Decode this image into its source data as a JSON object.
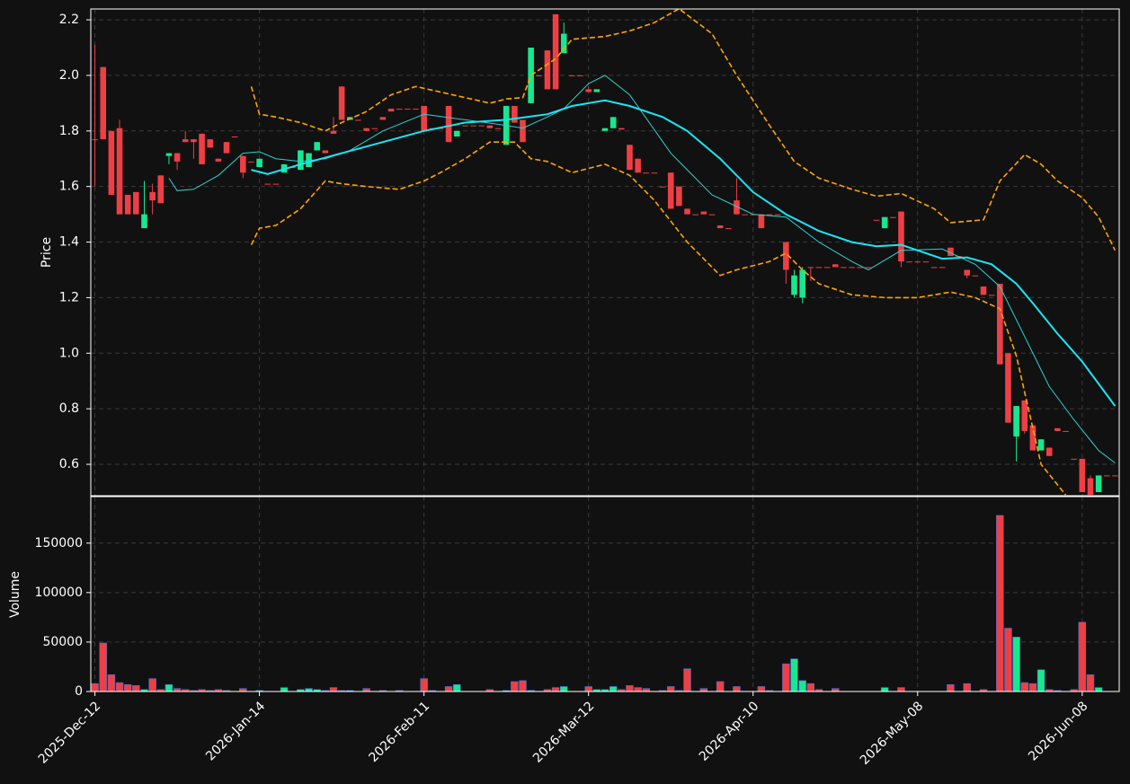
{
  "chart_data": [
    {
      "type": "candlestick",
      "ylabel": "Price",
      "xlim": [
        -0.5,
        124.5
      ],
      "xticks": [
        0,
        20,
        40,
        60,
        80,
        100,
        120
      ],
      "ylim": [
        0.487,
        2.239
      ],
      "yticks": [
        0.6,
        0.8,
        {
          "value": 1,
          "label": "1.0"
        },
        1.2,
        1.4,
        1.6,
        1.8,
        {
          "value": 2,
          "label": "2.0"
        },
        2.2
      ],
      "grid": true,
      "up_color": "#17e88f",
      "down_color": "#ee3f45",
      "open": [
        1.77,
        2.03,
        1.8,
        1.81,
        1.57,
        1.58,
        1.45,
        1.58,
        1.64,
        1.71,
        1.72,
        1.77,
        1.77,
        1.79,
        1.77,
        1.7,
        1.76,
        1.78,
        1.71,
        1.69,
        1.67,
        1.61,
        1.61,
        1.65,
        1.67,
        1.66,
        1.67,
        1.73,
        1.73,
        1.8,
        1.96,
        1.84,
        1.84,
        1.81,
        1.81,
        1.85,
        1.88,
        1.88,
        1.88,
        1.88,
        1.89,
        1.81,
        1.81,
        1.89,
        1.78,
        1.82,
        1.82,
        1.82,
        1.82,
        1.81,
        1.75,
        1.89,
        1.84,
        1.9,
        2.0,
        2.09,
        2.22,
        2.08,
        2.0,
        2.0,
        1.95,
        1.94,
        1.8,
        1.81,
        1.81,
        1.75,
        1.7,
        1.65,
        1.65,
        1.6,
        1.65,
        1.6,
        1.52,
        1.5,
        1.51,
        1.5,
        1.46,
        1.45,
        1.55,
        1.5,
        1.5,
        1.5,
        1.5,
        1.5,
        1.4,
        1.21,
        1.2,
        1.31,
        1.31,
        1.31,
        1.32,
        1.31,
        1.31,
        1.31,
        1.31,
        1.48,
        1.45,
        1.49,
        1.51,
        1.33,
        1.33,
        1.33,
        1.31,
        1.31,
        1.38,
        1.35,
        1.3,
        1.28,
        1.24,
        1.21,
        1.25,
        1.0,
        0.7,
        0.83,
        0.74,
        0.65,
        0.66,
        0.73,
        0.72,
        0.62,
        0.62,
        0.55,
        0.5,
        0.56,
        0.56
      ],
      "high": [
        2.11,
        2.03,
        1.8,
        1.84,
        1.57,
        1.58,
        1.62,
        1.61,
        1.64,
        1.72,
        1.72,
        1.8,
        1.77,
        1.79,
        1.77,
        1.7,
        1.76,
        1.78,
        1.71,
        1.69,
        1.7,
        1.61,
        1.61,
        1.68,
        1.67,
        1.73,
        1.72,
        1.76,
        1.73,
        1.85,
        1.96,
        1.85,
        1.84,
        1.81,
        1.81,
        1.85,
        1.88,
        1.88,
        1.88,
        1.88,
        1.89,
        1.81,
        1.81,
        1.89,
        1.8,
        1.82,
        1.82,
        1.82,
        1.82,
        1.81,
        1.89,
        1.89,
        1.84,
        2.1,
        2.0,
        2.09,
        2.22,
        2.19,
        2.0,
        2.0,
        1.96,
        1.95,
        1.81,
        1.85,
        1.81,
        1.75,
        1.7,
        1.65,
        1.65,
        1.6,
        1.65,
        1.6,
        1.52,
        1.5,
        1.51,
        1.5,
        1.46,
        1.45,
        1.63,
        1.5,
        1.5,
        1.5,
        1.5,
        1.5,
        1.4,
        1.3,
        1.31,
        1.31,
        1.31,
        1.31,
        1.32,
        1.31,
        1.31,
        1.31,
        1.31,
        1.48,
        1.49,
        1.49,
        1.51,
        1.33,
        1.33,
        1.33,
        1.31,
        1.31,
        1.38,
        1.35,
        1.3,
        1.28,
        1.24,
        1.21,
        1.25,
        1.0,
        0.81,
        0.83,
        0.74,
        0.69,
        0.66,
        0.73,
        0.72,
        0.62,
        0.62,
        0.56,
        0.56,
        0.56,
        0.56
      ],
      "low": [
        1.6,
        1.77,
        1.57,
        1.5,
        1.5,
        1.5,
        1.45,
        1.5,
        1.54,
        1.68,
        1.66,
        1.76,
        1.7,
        1.68,
        1.74,
        1.69,
        1.72,
        1.78,
        1.63,
        1.69,
        1.67,
        1.61,
        1.61,
        1.65,
        1.67,
        1.66,
        1.67,
        1.73,
        1.72,
        1.79,
        1.84,
        1.84,
        1.84,
        1.8,
        1.81,
        1.84,
        1.87,
        1.88,
        1.88,
        1.88,
        1.8,
        1.81,
        1.81,
        1.76,
        1.78,
        1.82,
        1.82,
        1.82,
        1.81,
        1.81,
        1.75,
        1.83,
        1.76,
        1.9,
        2.0,
        1.95,
        1.95,
        2.08,
        2.0,
        2.0,
        1.94,
        1.94,
        1.8,
        1.81,
        1.805,
        1.66,
        1.65,
        1.65,
        1.65,
        1.6,
        1.52,
        1.53,
        1.5,
        1.5,
        1.5,
        1.5,
        1.45,
        1.45,
        1.5,
        1.5,
        1.5,
        1.45,
        1.5,
        1.5,
        1.25,
        1.2,
        1.18,
        1.26,
        1.31,
        1.31,
        1.31,
        1.31,
        1.31,
        1.31,
        1.31,
        1.48,
        1.45,
        1.49,
        1.31,
        1.33,
        1.33,
        1.33,
        1.31,
        1.31,
        1.35,
        1.35,
        1.27,
        1.28,
        1.21,
        1.21,
        0.96,
        0.75,
        0.61,
        0.71,
        0.65,
        0.65,
        0.63,
        0.72,
        0.72,
        0.62,
        0.5,
        0.49,
        0.5,
        0.56,
        0.56
      ],
      "close": [
        1.77,
        1.77,
        1.57,
        1.5,
        1.5,
        1.5,
        1.5,
        1.55,
        1.54,
        1.72,
        1.69,
        1.76,
        1.76,
        1.68,
        1.74,
        1.69,
        1.72,
        1.78,
        1.65,
        1.69,
        1.7,
        1.61,
        1.61,
        1.68,
        1.67,
        1.73,
        1.72,
        1.76,
        1.72,
        1.79,
        1.84,
        1.85,
        1.84,
        1.8,
        1.81,
        1.84,
        1.87,
        1.88,
        1.88,
        1.88,
        1.8,
        1.81,
        1.81,
        1.76,
        1.8,
        1.82,
        1.82,
        1.82,
        1.81,
        1.81,
        1.89,
        1.83,
        1.76,
        2.1,
        2.0,
        1.95,
        1.95,
        2.15,
        2.0,
        2.0,
        1.94,
        1.95,
        1.81,
        1.85,
        1.805,
        1.66,
        1.65,
        1.65,
        1.65,
        1.6,
        1.52,
        1.53,
        1.5,
        1.5,
        1.5,
        1.5,
        1.45,
        1.45,
        1.5,
        1.5,
        1.5,
        1.45,
        1.5,
        1.5,
        1.3,
        1.28,
        1.3,
        1.31,
        1.31,
        1.31,
        1.31,
        1.31,
        1.31,
        1.31,
        1.31,
        1.48,
        1.49,
        1.49,
        1.33,
        1.33,
        1.33,
        1.33,
        1.31,
        1.31,
        1.35,
        1.35,
        1.28,
        1.28,
        1.21,
        1.21,
        0.96,
        0.75,
        0.81,
        0.72,
        0.65,
        0.69,
        0.63,
        0.72,
        0.72,
        0.62,
        0.5,
        0.49,
        0.56,
        0.56,
        0.56
      ],
      "lines": [
        {
          "color": "#2fd0d0",
          "width": 1,
          "dashed": false,
          "x": [
            9,
            10,
            12,
            15,
            18,
            20,
            22,
            25,
            28,
            31,
            35,
            40,
            45,
            50,
            52,
            55,
            57,
            60,
            62,
            65,
            70,
            75,
            80,
            84,
            88,
            92,
            94,
            98,
            103,
            107,
            110,
            113,
            116,
            119,
            122,
            124
          ],
          "values": [
            1.63,
            1.585,
            1.59,
            1.64,
            1.72,
            1.725,
            1.7,
            1.69,
            1.7,
            1.73,
            1.8,
            1.86,
            1.84,
            1.82,
            1.81,
            1.85,
            1.88,
            1.97,
            2.0,
            1.93,
            1.72,
            1.57,
            1.5,
            1.49,
            1.4,
            1.33,
            1.3,
            1.37,
            1.375,
            1.32,
            1.24,
            1.06,
            0.88,
            0.76,
            0.65,
            0.605
          ]
        },
        {
          "color": "#19e6f5",
          "width": 2,
          "dashed": false,
          "x": [
            19,
            21,
            25,
            30,
            35,
            40,
            45,
            50,
            55,
            58,
            62,
            65,
            69,
            72,
            76,
            80,
            84,
            88,
            92,
            95,
            98,
            103,
            106,
            109,
            112,
            114,
            117,
            120,
            124
          ],
          "values": [
            1.66,
            1.645,
            1.68,
            1.72,
            1.76,
            1.8,
            1.83,
            1.84,
            1.86,
            1.89,
            1.91,
            1.89,
            1.85,
            1.8,
            1.7,
            1.58,
            1.5,
            1.44,
            1.4,
            1.385,
            1.39,
            1.34,
            1.345,
            1.32,
            1.25,
            1.18,
            1.07,
            0.97,
            0.81
          ]
        },
        {
          "color": "#ffa500",
          "width": 1.6,
          "dashed": true,
          "x": [
            19,
            20,
            22,
            25,
            28,
            30,
            33,
            36,
            39,
            42,
            45,
            48,
            50,
            52,
            53,
            56,
            58,
            62,
            65,
            68,
            71,
            75,
            78,
            82,
            85,
            88,
            92,
            95,
            98,
            102,
            104,
            108,
            110,
            113,
            115,
            117,
            120,
            122,
            124
          ],
          "values": [
            1.96,
            1.86,
            1.85,
            1.83,
            1.8,
            1.83,
            1.87,
            1.93,
            1.96,
            1.94,
            1.92,
            1.9,
            1.915,
            1.92,
            2.0,
            2.06,
            2.13,
            2.14,
            2.16,
            2.19,
            2.24,
            2.15,
            2.0,
            1.82,
            1.69,
            1.63,
            1.59,
            1.565,
            1.575,
            1.52,
            1.47,
            1.48,
            1.62,
            1.715,
            1.68,
            1.62,
            1.56,
            1.49,
            1.37
          ]
        },
        {
          "color": "#ffa500",
          "width": 1.6,
          "dashed": true,
          "x": [
            19,
            20,
            22,
            25,
            28,
            30,
            33,
            37,
            40,
            42,
            45,
            48,
            51,
            53,
            55,
            58,
            62,
            65,
            68,
            72,
            76,
            78,
            82,
            84,
            86,
            88,
            92,
            96,
            100,
            104,
            107,
            110,
            112,
            115,
            118
          ],
          "values": [
            1.39,
            1.45,
            1.46,
            1.52,
            1.62,
            1.61,
            1.6,
            1.59,
            1.62,
            1.65,
            1.7,
            1.76,
            1.76,
            1.7,
            1.69,
            1.65,
            1.68,
            1.64,
            1.55,
            1.4,
            1.28,
            1.3,
            1.33,
            1.36,
            1.3,
            1.25,
            1.21,
            1.2,
            1.2,
            1.22,
            1.2,
            1.16,
            0.99,
            0.6,
            0.49
          ]
        }
      ]
    },
    {
      "type": "volume",
      "ylabel": "Volume",
      "xlim": [
        -0.5,
        124.5
      ],
      "xticks": [
        {
          "value": 0,
          "label": "2025-Dec-12"
        },
        {
          "value": 20,
          "label": "2026-Jan-14"
        },
        {
          "value": 40,
          "label": "2026-Feb-11"
        },
        {
          "value": 60,
          "label": "2026-Mar-12"
        },
        {
          "value": 80,
          "label": "2026-Apr-10"
        },
        {
          "value": 100,
          "label": "2026-May-08"
        },
        {
          "value": 120,
          "label": "2026-Jun-08"
        }
      ],
      "ylim": [
        0,
        197000
      ],
      "yticks": [
        0,
        50000,
        100000,
        150000
      ],
      "grid": true,
      "edge_color": "#4a6fd0",
      "values": [
        8000,
        49000,
        17000,
        9000,
        7000,
        6000,
        2000,
        13000,
        2000,
        7000,
        3000,
        2000,
        1000,
        2000,
        1000,
        2000,
        1000,
        0,
        3000,
        0,
        1000,
        0,
        0,
        4000,
        0,
        2000,
        3000,
        2000,
        1000,
        4000,
        1000,
        1000,
        0,
        3000,
        0,
        1000,
        0,
        1000,
        0,
        0,
        13000,
        1000,
        0,
        5000,
        7000,
        0,
        0,
        0,
        2000,
        0,
        1000,
        10000,
        11000,
        1000,
        0,
        2000,
        4000,
        5000,
        0,
        0,
        5000,
        2000,
        2000,
        5000,
        2000,
        6000,
        4000,
        3000,
        0,
        1000,
        5000,
        1000,
        23000,
        0,
        3000,
        0,
        10000,
        0,
        5000,
        0,
        0,
        5000,
        1000,
        0,
        28000,
        33000,
        11000,
        8000,
        2000,
        0,
        3000,
        0,
        0,
        0,
        0,
        0,
        4000,
        0,
        4000,
        0,
        0,
        0,
        0,
        0,
        7000,
        0,
        8000,
        0,
        2000,
        0,
        178000,
        64000,
        55000,
        9000,
        8000,
        22000,
        2000,
        1000,
        0,
        2000,
        70000,
        17000,
        4000,
        0,
        0
      ]
    }
  ]
}
